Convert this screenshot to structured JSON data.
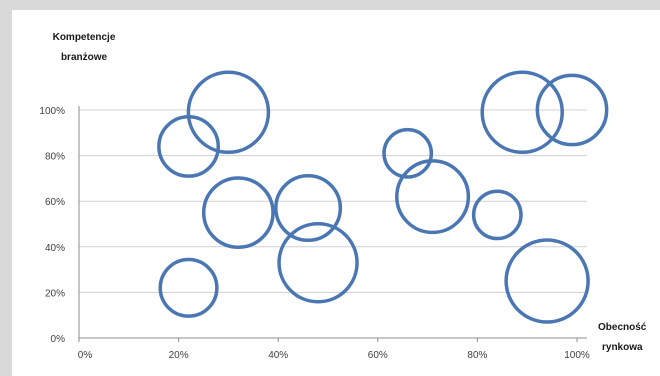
{
  "chart_data": {
    "type": "bubble",
    "ylabel": [
      "Kompetencje",
      "branżowe"
    ],
    "xlabel": [
      "Obecność",
      "rynkowa"
    ],
    "xlim": [
      0,
      100
    ],
    "ylim": [
      0,
      100
    ],
    "x_ticks": [
      "0%",
      "20%",
      "40%",
      "60%",
      "80%",
      "100%"
    ],
    "y_ticks": [
      "0%",
      "20%",
      "40%",
      "60%",
      "80%",
      "100%"
    ],
    "grid": "horizontal",
    "bubble_color": "#4a76b3",
    "points": [
      {
        "x": 30,
        "y": 99,
        "size": 40
      },
      {
        "x": 22,
        "y": 84,
        "size": 22
      },
      {
        "x": 22,
        "y": 22,
        "size": 20
      },
      {
        "x": 32,
        "y": 55,
        "size": 30
      },
      {
        "x": 46,
        "y": 57,
        "size": 26
      },
      {
        "x": 48,
        "y": 33,
        "size": 38
      },
      {
        "x": 66,
        "y": 81,
        "size": 14
      },
      {
        "x": 71,
        "y": 62,
        "size": 32
      },
      {
        "x": 84,
        "y": 54,
        "size": 14
      },
      {
        "x": 89,
        "y": 99,
        "size": 40
      },
      {
        "x": 99,
        "y": 100,
        "size": 30
      },
      {
        "x": 94,
        "y": 25,
        "size": 42
      }
    ]
  }
}
